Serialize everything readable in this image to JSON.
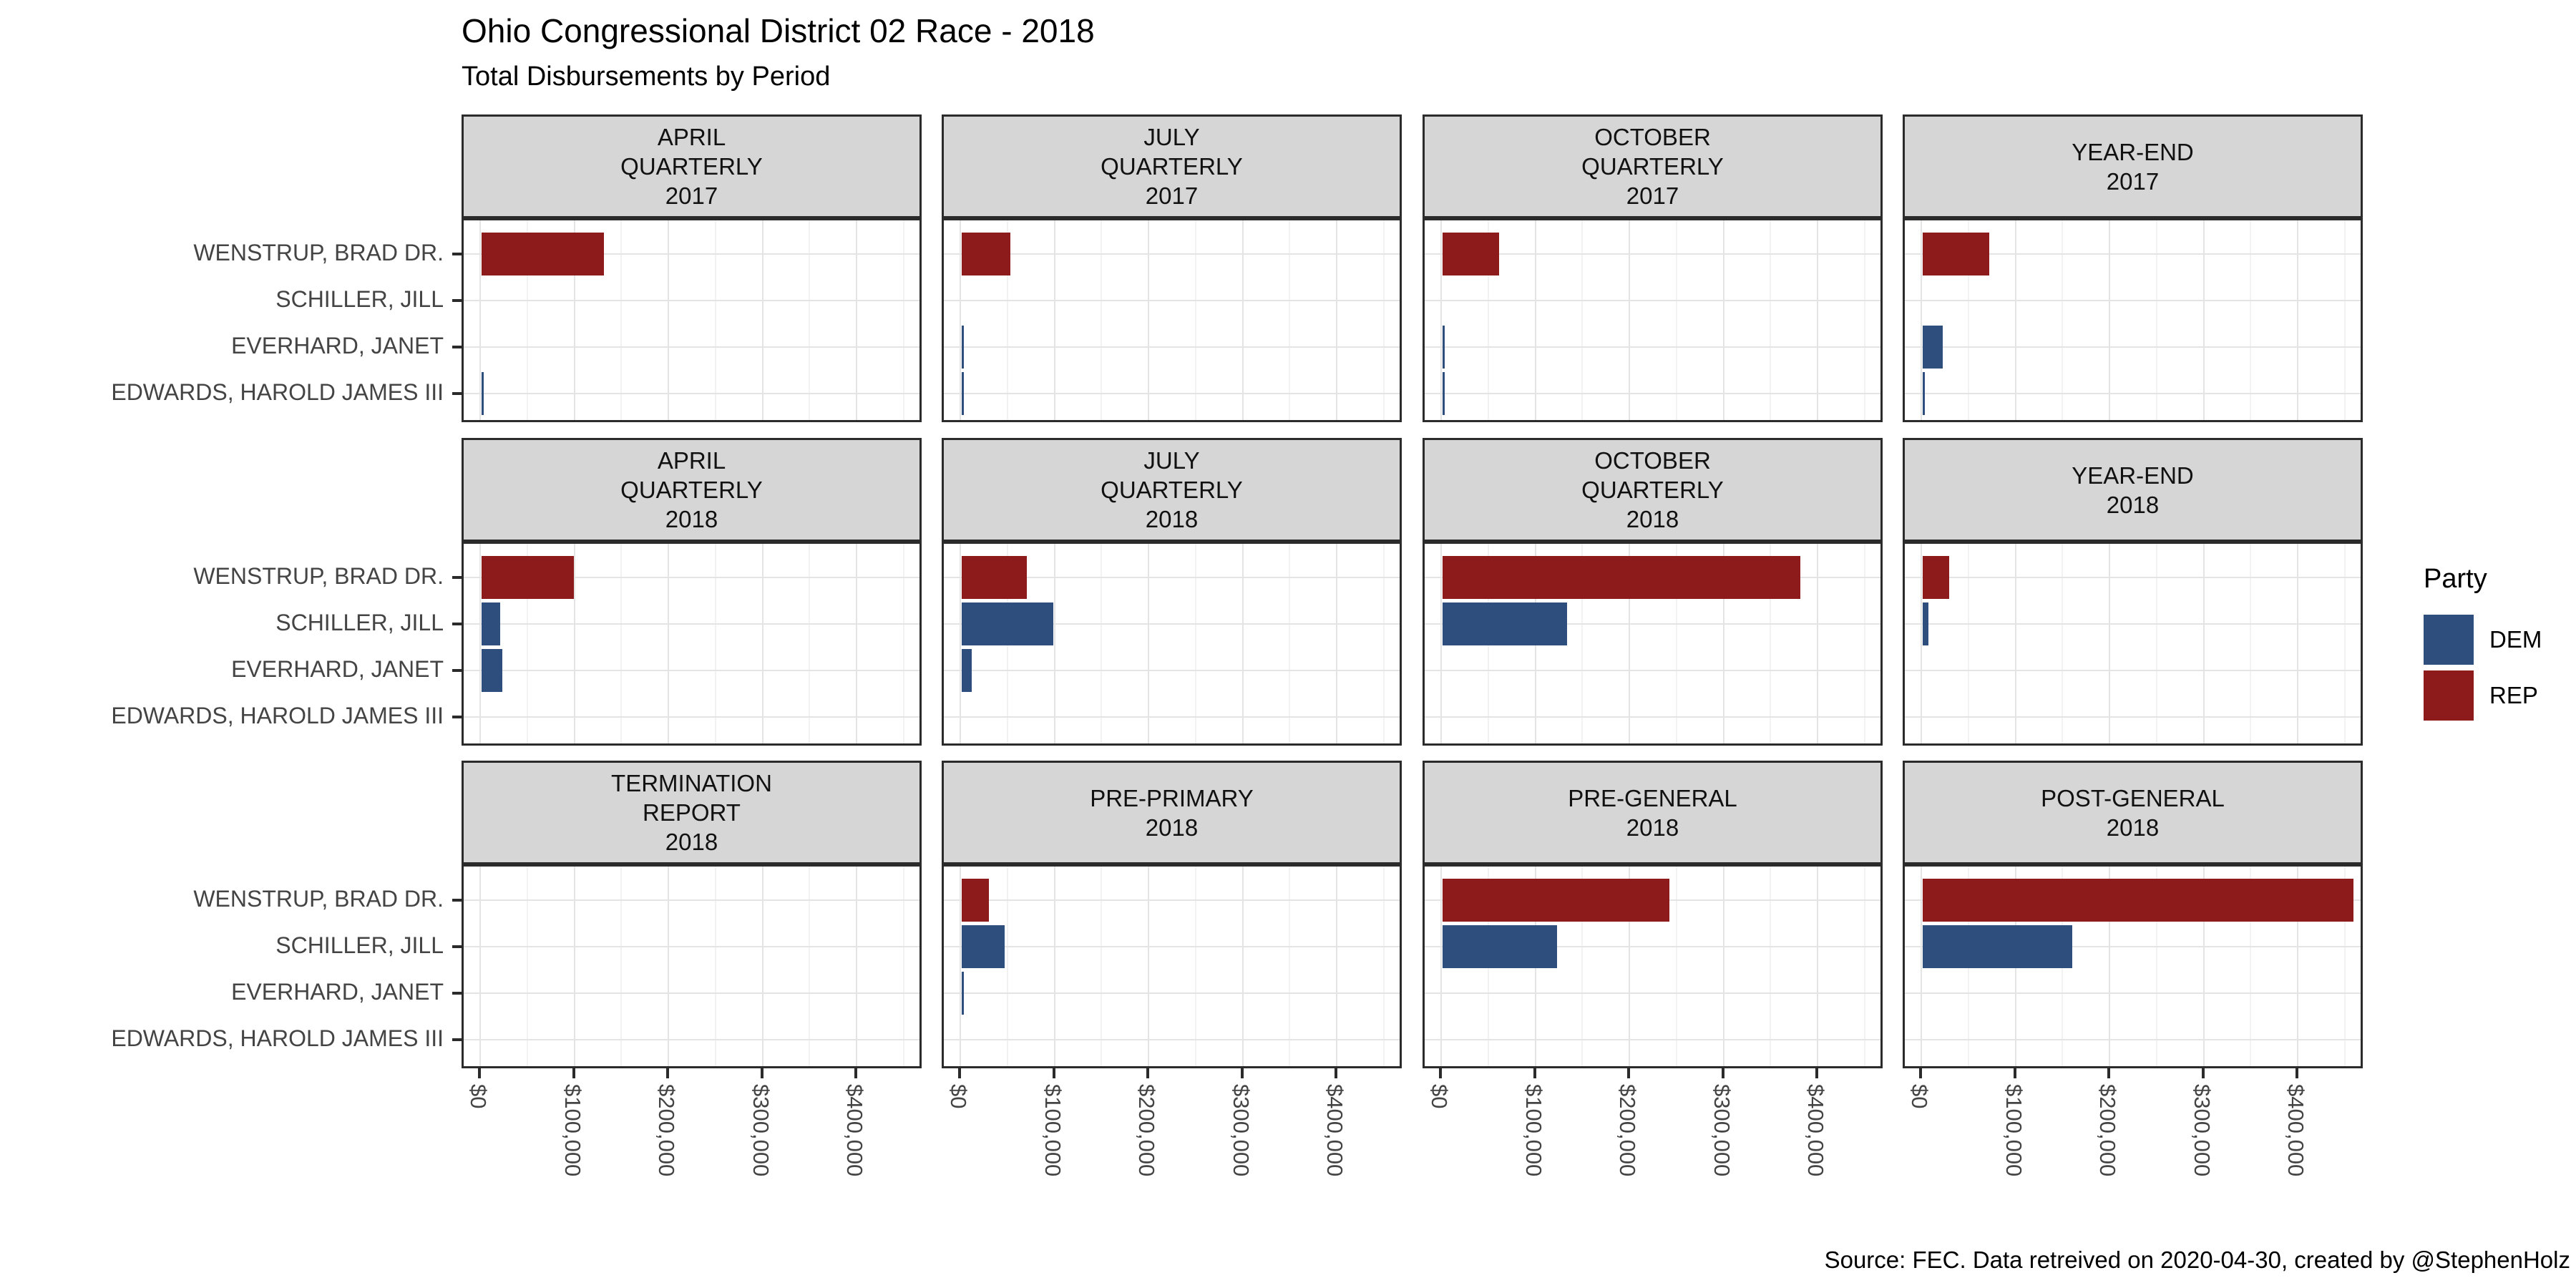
{
  "header": {
    "title": "Ohio Congressional District 02 Race - 2018",
    "subtitle": "Total Disbursements by Period"
  },
  "caption": "Source: FEC. Data retreived on 2020-04-30, created by @StephenHolz",
  "legend": {
    "title": "Party",
    "items": [
      {
        "label": "DEM",
        "color": "#2E4E7E"
      },
      {
        "label": "REP",
        "color": "#8E1B1B"
      }
    ]
  },
  "colors": {
    "DEM": "#2E4E7E",
    "REP": "#8E1B1B",
    "strip_background": "#D6D6D6",
    "panel_border": "#2b2b2b",
    "grid_major": "#e4e4e4",
    "grid_minor": "#f2f2f2",
    "axis_text": "#444444"
  },
  "chart_data": {
    "type": "bar",
    "orientation": "horizontal",
    "title": "Ohio Congressional District 02 Race - 2018",
    "subtitle": "Total Disbursements by Period",
    "facet_grid": {
      "rows": 3,
      "cols": 4
    },
    "categories": [
      "WENSTRUP, BRAD DR.",
      "SCHILLER, JILL",
      "EVERHARD, JANET",
      "EDWARDS, HAROLD JAMES III"
    ],
    "category_party": [
      "REP",
      "DEM",
      "DEM",
      "DEM"
    ],
    "x_ticks": [
      "$0",
      "$100,000",
      "$200,000",
      "$300,000",
      "$400,000"
    ],
    "x_tick_values": [
      0,
      100000,
      200000,
      300000,
      400000
    ],
    "xlim": [
      0,
      470000
    ],
    "grid": true,
    "legend_position": "right",
    "facets": [
      {
        "label_lines": [
          "APRIL",
          "QUARTERLY",
          "2017"
        ],
        "values": [
          130000,
          0,
          0,
          1500
        ]
      },
      {
        "label_lines": [
          "JULY",
          "QUARTERLY",
          "2017"
        ],
        "values": [
          52000,
          0,
          1000,
          1000
        ]
      },
      {
        "label_lines": [
          "OCTOBER",
          "QUARTERLY",
          "2017"
        ],
        "values": [
          60000,
          0,
          1000,
          1000
        ]
      },
      {
        "label_lines": [
          "YEAR-END",
          "2017"
        ],
        "values": [
          71000,
          0,
          21000,
          2000
        ]
      },
      {
        "label_lines": [
          "APRIL",
          "QUARTERLY",
          "2018"
        ],
        "values": [
          98000,
          20000,
          22000,
          0
        ]
      },
      {
        "label_lines": [
          "JULY",
          "QUARTERLY",
          "2018"
        ],
        "values": [
          69000,
          97000,
          11000,
          0
        ]
      },
      {
        "label_lines": [
          "OCTOBER",
          "QUARTERLY",
          "2018"
        ],
        "values": [
          380000,
          132000,
          0,
          0
        ]
      },
      {
        "label_lines": [
          "YEAR-END",
          "2018"
        ],
        "values": [
          28000,
          6000,
          0,
          0
        ]
      },
      {
        "label_lines": [
          "TERMINATION",
          "REPORT",
          "2018"
        ],
        "values": [
          0,
          0,
          0,
          0
        ]
      },
      {
        "label_lines": [
          "PRE-PRIMARY",
          "2018"
        ],
        "values": [
          29000,
          46000,
          1500,
          0
        ]
      },
      {
        "label_lines": [
          "PRE-GENERAL",
          "2018"
        ],
        "values": [
          241000,
          122000,
          0,
          0
        ]
      },
      {
        "label_lines": [
          "POST-GENERAL",
          "2018"
        ],
        "values": [
          458000,
          159000,
          0,
          0
        ]
      }
    ]
  }
}
